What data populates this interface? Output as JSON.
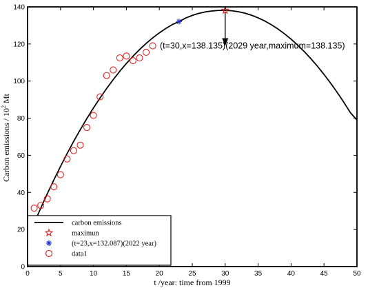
{
  "chart_data": {
    "type": "line",
    "xlabel": "t /year: time from 1999",
    "ylabel_prefix": "Carbon emissions / 10",
    "ylabel_sup": "2",
    "ylabel_suffix": " Mt",
    "xlim": [
      0,
      50
    ],
    "ylim": [
      0,
      140
    ],
    "xticks": [
      0,
      5,
      10,
      15,
      20,
      25,
      30,
      35,
      40,
      45,
      50
    ],
    "yticks": [
      0,
      20,
      40,
      60,
      80,
      100,
      120,
      140
    ],
    "grid": false,
    "legend_position": "bottom-left",
    "curve": {
      "name": "carbon emissions",
      "color": "#000000",
      "x": [
        0,
        1,
        2,
        3,
        4,
        5,
        6,
        7,
        8,
        9,
        10,
        11,
        12,
        13,
        14,
        15,
        16,
        17,
        18,
        19,
        20,
        21,
        22,
        23,
        24,
        25,
        26,
        27,
        28,
        29,
        30,
        31,
        32,
        33,
        34,
        35,
        36,
        37,
        38,
        39,
        40,
        41,
        42,
        43,
        44,
        45,
        46,
        47,
        48,
        49,
        50
      ],
      "y": [
        15.0,
        23.4,
        31.5,
        39.3,
        46.8,
        54.0,
        60.9,
        67.5,
        73.8,
        79.8,
        85.5,
        90.9,
        96.0,
        100.8,
        105.3,
        109.5,
        113.4,
        117.0,
        120.3,
        123.3,
        126.0,
        128.4,
        130.5,
        132.1,
        134.0,
        135.4,
        136.5,
        137.3,
        137.8,
        138.1,
        138.1,
        137.9,
        137.4,
        136.6,
        135.5,
        134.1,
        132.4,
        130.4,
        128.1,
        125.5,
        122.6,
        119.4,
        115.9,
        112.1,
        108.0,
        103.6,
        98.9,
        93.9,
        88.6,
        83.0,
        79.0
      ]
    },
    "maximum": {
      "name": "maximun",
      "x": 30,
      "y": 138.135,
      "color": "#e02020"
    },
    "point2022": {
      "name": "(t=23,x=132.087)(2022 year)",
      "x": 23,
      "y": 132.087,
      "color": "#1f2fd0"
    },
    "data1": {
      "name": "data1",
      "color": "#e02020",
      "x": [
        1,
        2,
        3,
        4,
        5,
        6,
        7,
        8,
        9,
        10,
        11,
        12,
        13,
        14,
        15,
        16,
        17,
        18,
        19
      ],
      "y": [
        31.5,
        33,
        36.5,
        43,
        49.5,
        58,
        62.5,
        65.5,
        75,
        81.5,
        91.5,
        103,
        106,
        112.5,
        113.5,
        111,
        112.5,
        115.5,
        119
      ]
    },
    "annotation": {
      "text": "(t=30,x=138.135)(2029 year,maximum=138.135)",
      "arrow_from": [
        30,
        137
      ],
      "arrow_to": [
        30,
        119
      ]
    }
  }
}
